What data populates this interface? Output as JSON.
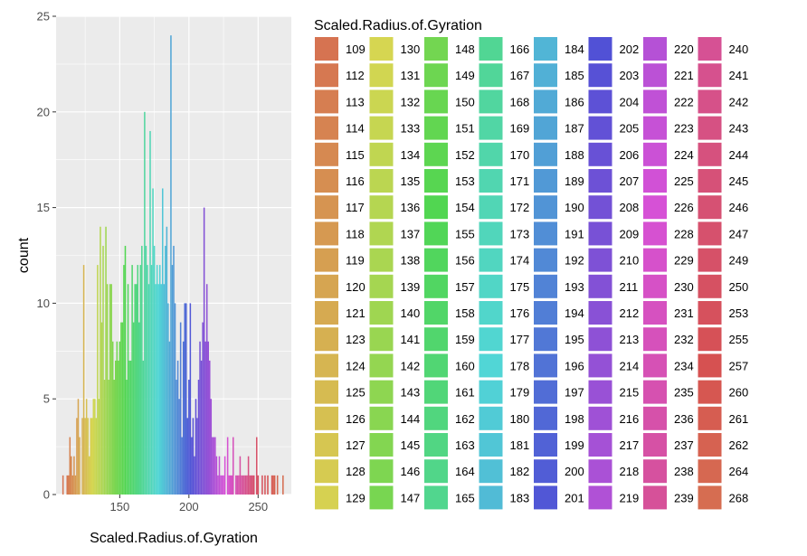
{
  "chart_data": {
    "type": "bar",
    "xlabel": "Scaled.Radius.of.Gyration",
    "ylabel": "count",
    "xlim": [
      104,
      274
    ],
    "ylim": [
      0,
      25
    ],
    "x_ticks": [
      150,
      200,
      250
    ],
    "y_ticks": [
      0,
      5,
      10,
      15,
      20,
      25
    ],
    "grid": true,
    "legend": {
      "title": "Scaled.Radius.of.Gyration",
      "placement": "right"
    },
    "x": [
      109,
      112,
      113,
      114,
      115,
      116,
      117,
      118,
      119,
      120,
      121,
      123,
      124,
      125,
      126,
      127,
      128,
      129,
      130,
      131,
      132,
      133,
      134,
      135,
      136,
      137,
      138,
      139,
      140,
      141,
      142,
      143,
      144,
      145,
      146,
      147,
      148,
      149,
      150,
      151,
      152,
      153,
      154,
      155,
      156,
      157,
      158,
      159,
      160,
      161,
      162,
      163,
      164,
      165,
      166,
      167,
      168,
      169,
      170,
      171,
      172,
      173,
      174,
      175,
      176,
      177,
      178,
      179,
      180,
      181,
      182,
      183,
      184,
      185,
      186,
      187,
      188,
      189,
      190,
      191,
      192,
      193,
      194,
      195,
      196,
      197,
      198,
      199,
      200,
      201,
      202,
      203,
      204,
      205,
      206,
      207,
      208,
      209,
      210,
      211,
      212,
      213,
      214,
      215,
      216,
      217,
      218,
      219,
      220,
      221,
      222,
      223,
      224,
      225,
      226,
      228,
      229,
      230,
      231,
      232,
      234,
      235,
      236,
      237,
      238,
      239,
      240,
      241,
      242,
      243,
      244,
      245,
      246,
      247,
      249,
      250,
      253,
      255,
      257,
      260,
      261,
      262,
      264,
      268
    ],
    "values": [
      1,
      1,
      1,
      3,
      2,
      1,
      2,
      1,
      4,
      5,
      3,
      4,
      12,
      4,
      5,
      4,
      2,
      4,
      4,
      5,
      5,
      4,
      12,
      5,
      14,
      9,
      13,
      6,
      14,
      11,
      6,
      11,
      11,
      8,
      6,
      7,
      8,
      7,
      8,
      9,
      9,
      12,
      13,
      6,
      11,
      7,
      7,
      12,
      9,
      11,
      11,
      12,
      9,
      12,
      13,
      7,
      20,
      13,
      12,
      11,
      19,
      12,
      16,
      13,
      11,
      12,
      11,
      12,
      11,
      16,
      11,
      13,
      14,
      10,
      8,
      24,
      12,
      13,
      10,
      6,
      7,
      5,
      9,
      3,
      8,
      10,
      10,
      4,
      6,
      10,
      3,
      4,
      2,
      5,
      4,
      6,
      8,
      7,
      9,
      15,
      8,
      11,
      8,
      7,
      5,
      3,
      3,
      3,
      2,
      1,
      2,
      1,
      1,
      1,
      2,
      3,
      1,
      1,
      1,
      3,
      1,
      1,
      1,
      2,
      1,
      1,
      1,
      1,
      1,
      2,
      1,
      1,
      1,
      1,
      3,
      1,
      1,
      1,
      1,
      1,
      1,
      1,
      1,
      1
    ]
  }
}
